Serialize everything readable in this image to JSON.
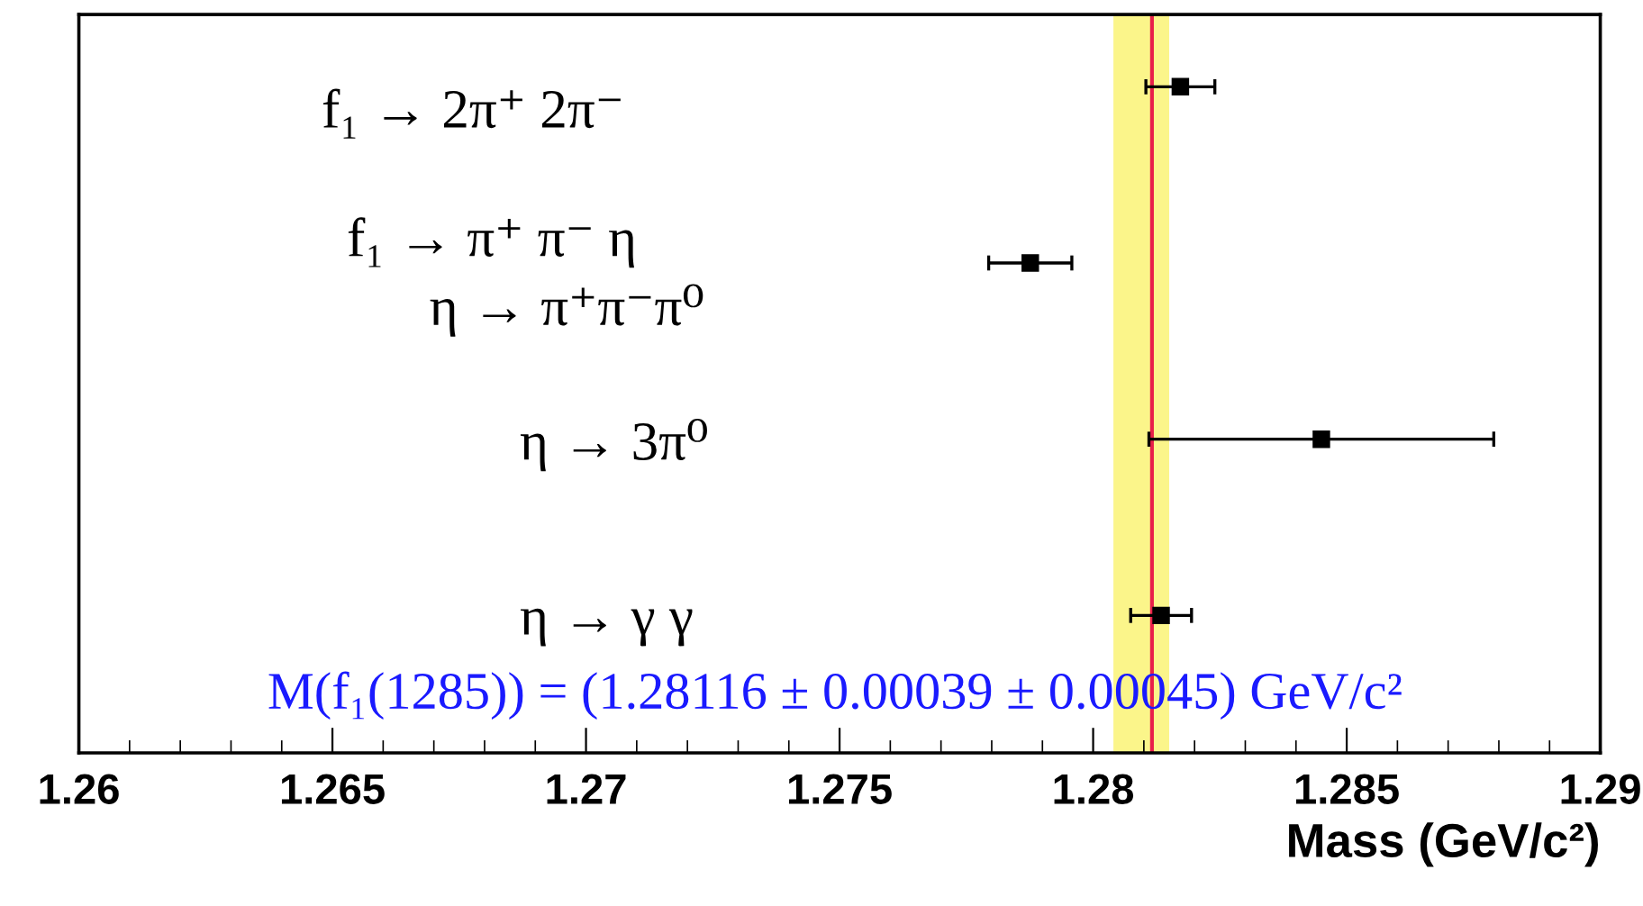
{
  "chart_data": {
    "type": "scatter",
    "orientation": "horizontal",
    "categories": [
      "f₁ → 2π⁺ 2π⁻",
      "f₁ → π⁺ π⁻ η\n      η → π⁺π⁻π⁰",
      "η → 3π⁰",
      "η → γ γ"
    ],
    "color": "#000000",
    "values": [
      1.28172,
      1.27876,
      1.2845,
      1.28134
    ],
    "errors": [
      0.00068,
      0.00082,
      0.0034,
      0.0006
    ],
    "marker": "square",
    "xlim": [
      1.26,
      1.29
    ],
    "xticks": [
      1.26,
      1.265,
      1.27,
      1.275,
      1.28,
      1.285,
      1.29
    ],
    "xlabel": "Mass (GeV/c²)",
    "ref_lines": [
      {
        "axis": "x",
        "value": 1.28116,
        "color": "#e8204a"
      }
    ],
    "bands": [
      {
        "axis": "x",
        "from": 1.2804,
        "to": 1.2815,
        "color": "#fbf58a"
      }
    ],
    "annotations": [
      "M(f₁(1285)) = (1.28116 ± 0.00039 ± 0.00045) GeV/c²"
    ],
    "grid": false,
    "legend": false
  }
}
